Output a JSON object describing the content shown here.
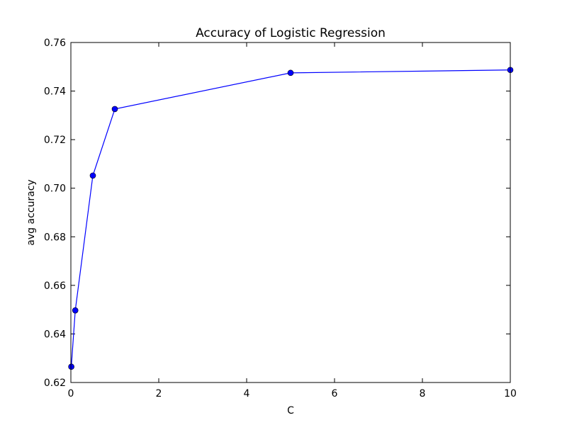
{
  "chart_data": {
    "type": "line",
    "title": "Accuracy of Logistic Regression",
    "xlabel": "C",
    "ylabel": "avg accuracy",
    "xlim": [
      0,
      10
    ],
    "ylim": [
      0.62,
      0.76
    ],
    "x_ticks": [
      0,
      2,
      4,
      6,
      8,
      10
    ],
    "x_tick_labels": [
      "0",
      "2",
      "4",
      "6",
      "8",
      "10"
    ],
    "y_ticks": [
      0.62,
      0.64,
      0.66,
      0.68,
      0.7,
      0.72,
      0.74,
      0.76
    ],
    "y_tick_labels": [
      "0.62",
      "0.64",
      "0.66",
      "0.68",
      "0.70",
      "0.72",
      "0.74",
      "0.76"
    ],
    "grid": false,
    "series": [
      {
        "color": "#0000ff",
        "marker": "circle",
        "x": [
          0.01,
          0.1,
          0.5,
          1,
          5,
          10
        ],
        "y": [
          0.6265,
          0.6497,
          0.7052,
          0.7326,
          0.7475,
          0.7487
        ]
      }
    ]
  }
}
